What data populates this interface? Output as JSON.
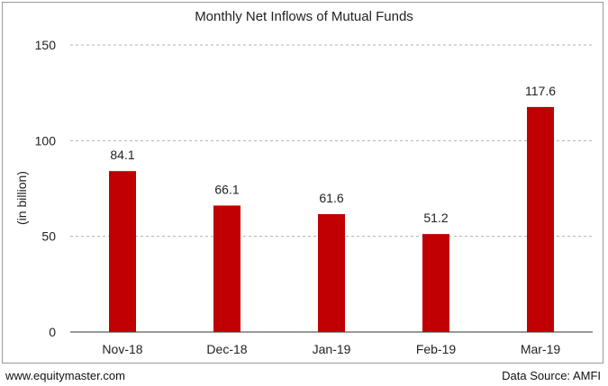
{
  "chart_data": {
    "type": "bar",
    "title": "Monthly Net Inflows of Mutual Funds",
    "ylabel": "(in billion)",
    "xlabel": "",
    "categories": [
      "Nov-18",
      "Dec-18",
      "Jan-19",
      "Feb-19",
      "Mar-19"
    ],
    "values": [
      84.1,
      66.1,
      61.6,
      51.2,
      117.6
    ],
    "data_labels": [
      "84.1",
      "66.1",
      "61.6",
      "51.2",
      "117.6"
    ],
    "ylim": [
      0,
      150
    ],
    "yticks": [
      0,
      50,
      100,
      150
    ],
    "ytick_labels": [
      "0",
      "50",
      "100",
      "150"
    ],
    "grid": true,
    "bar_color": "#c00000",
    "gridline_color": "#b0b0b0"
  },
  "footer": {
    "website": "www.equitymaster.com",
    "source": "Data Source: AMFI"
  }
}
